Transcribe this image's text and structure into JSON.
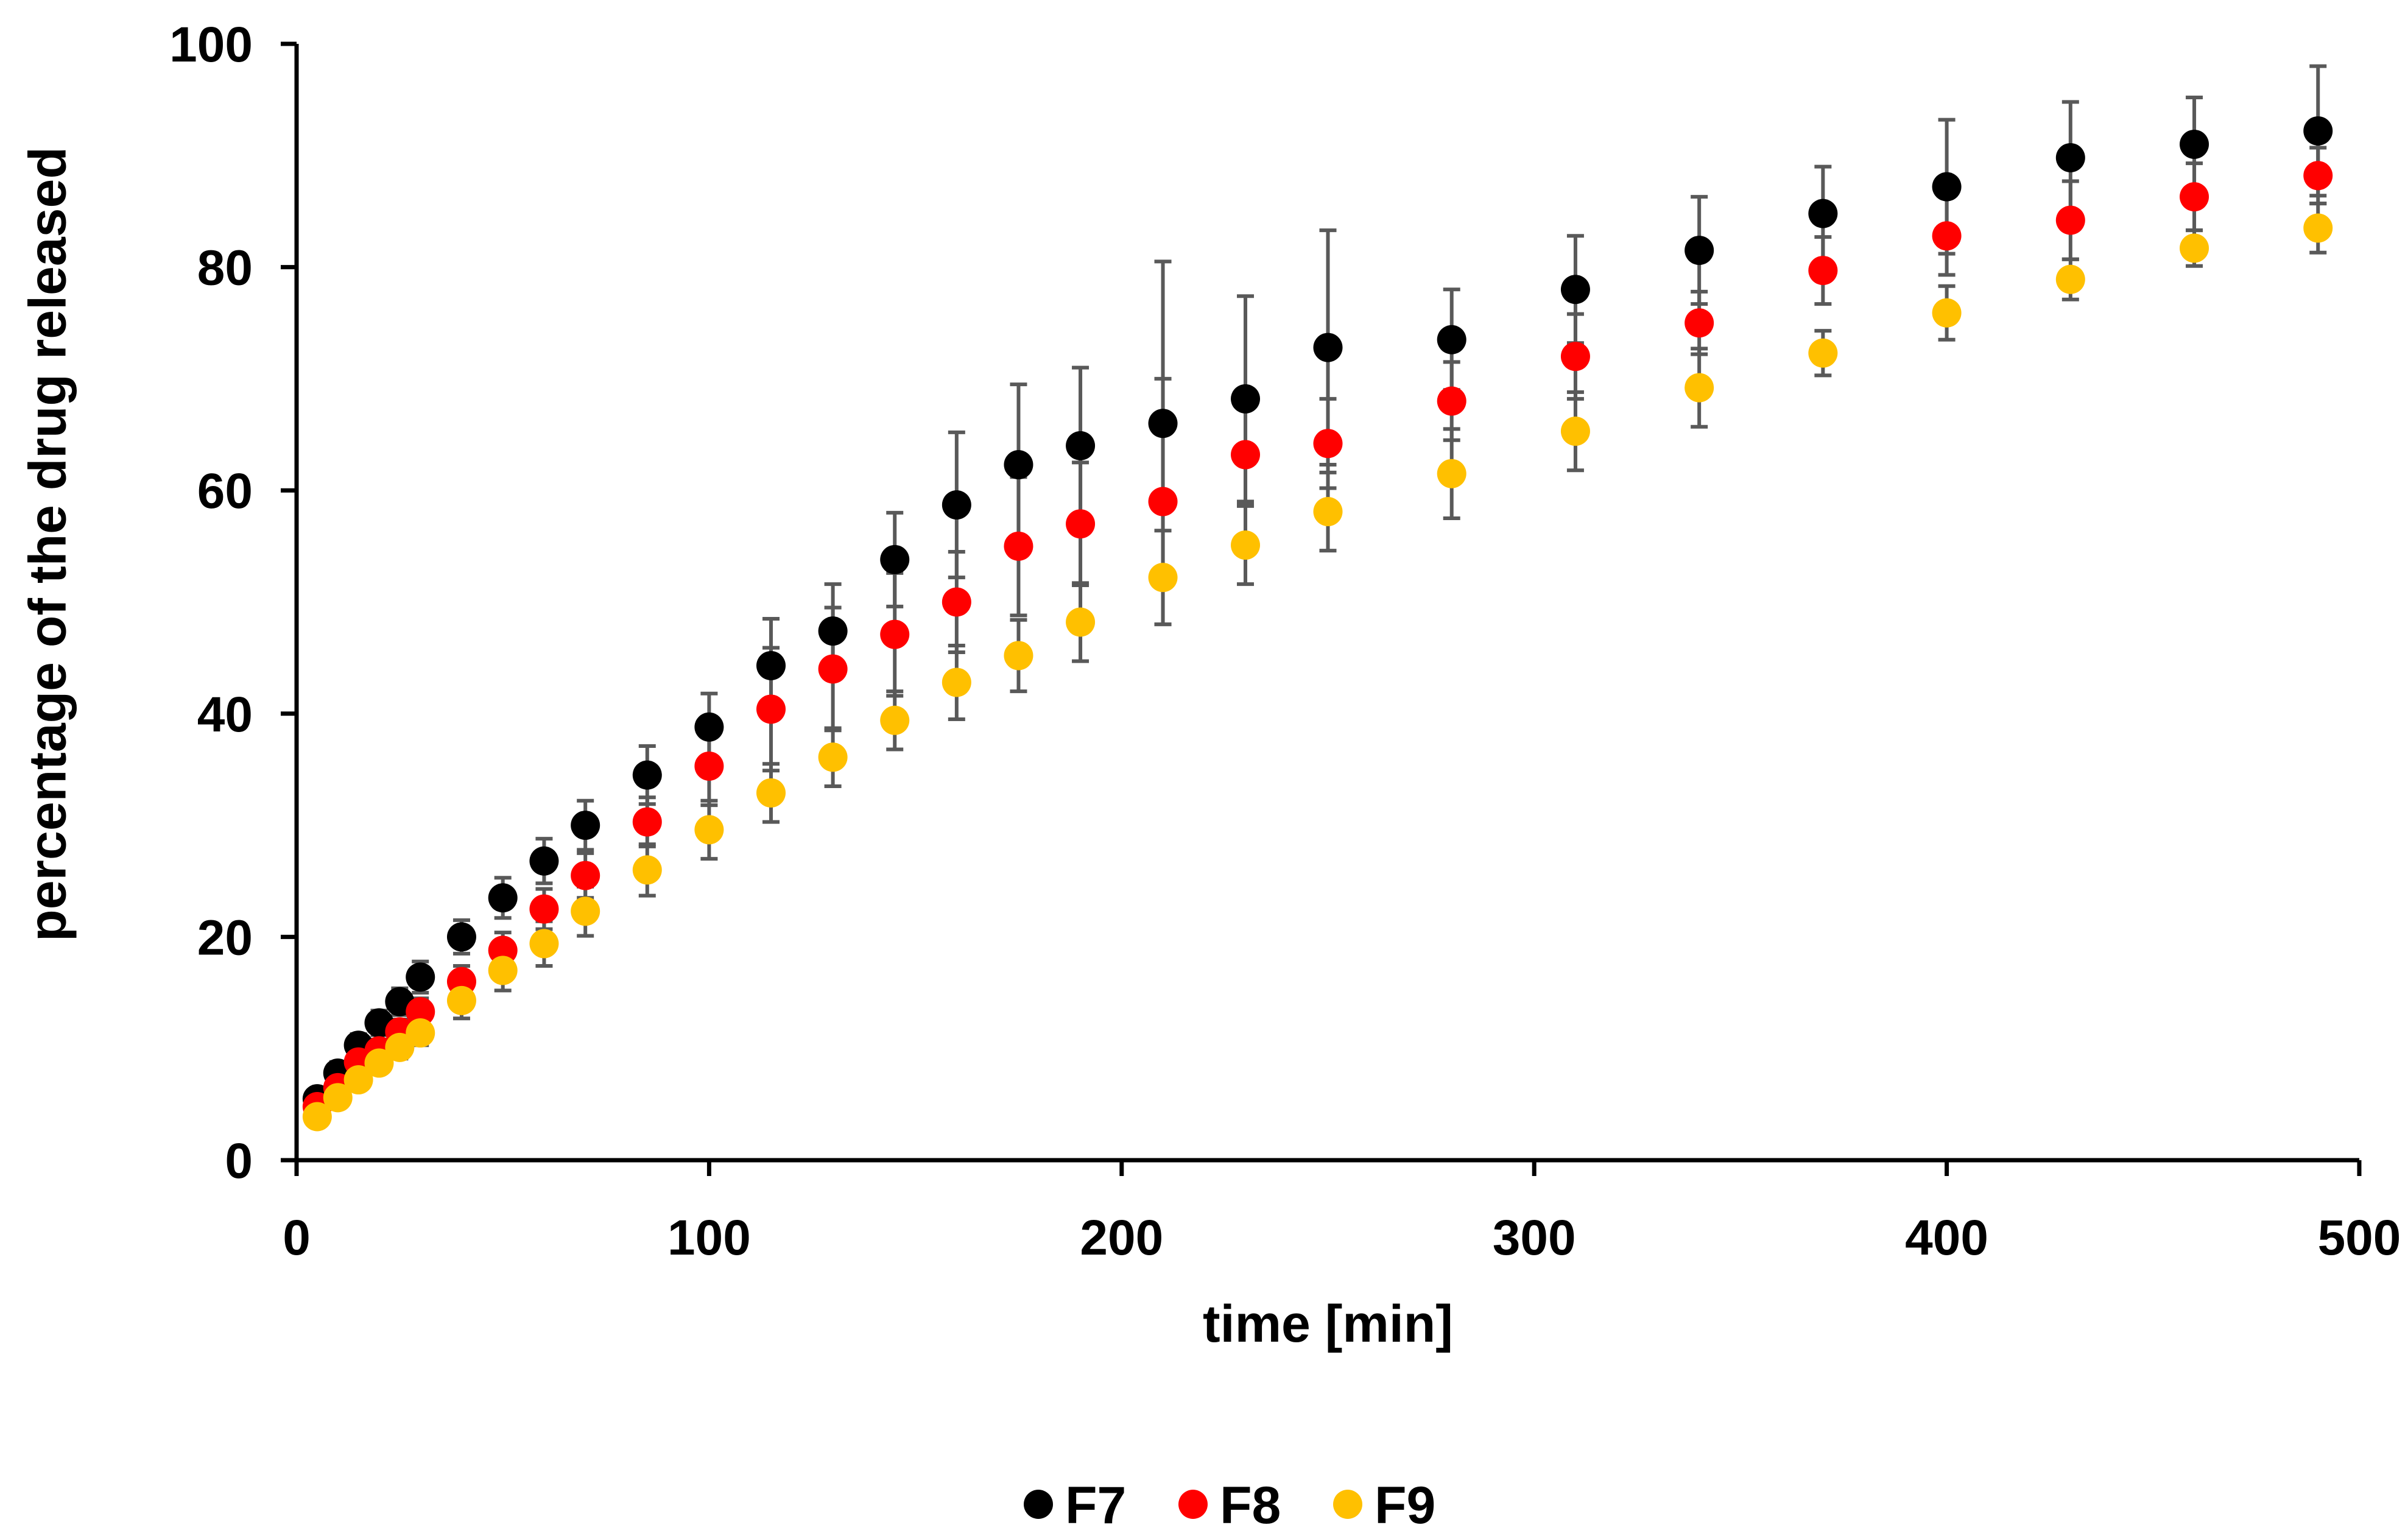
{
  "chart_data": {
    "type": "scatter",
    "title": "",
    "xlabel": "time [min]",
    "ylabel": "percentage of the drug released",
    "xlim": [
      0,
      500
    ],
    "ylim": [
      0,
      100
    ],
    "xticks": [
      0,
      100,
      200,
      300,
      400,
      500
    ],
    "yticks": [
      0,
      20,
      40,
      60,
      80,
      100
    ],
    "grid": false,
    "legend_position": "bottom-center",
    "x": [
      5,
      10,
      15,
      20,
      25,
      30,
      40,
      50,
      60,
      70,
      85,
      100,
      115,
      130,
      145,
      160,
      175,
      190,
      210,
      230,
      250,
      280,
      310,
      340,
      370,
      400,
      430,
      460,
      490
    ],
    "series": [
      {
        "name": "F7",
        "color": "#000000",
        "values": [
          5.5,
          7.8,
          10.3,
          12.3,
          14.2,
          16.4,
          20.0,
          23.5,
          26.8,
          30.0,
          34.5,
          38.8,
          44.3,
          47.4,
          53.8,
          58.7,
          62.3,
          64.0,
          66.0,
          68.2,
          72.8,
          73.5,
          78.0,
          81.5,
          84.8,
          87.2,
          89.8,
          91.0,
          92.2
        ],
        "errors": [
          0.8,
          1.0,
          1.0,
          1.1,
          1.2,
          1.4,
          1.5,
          1.8,
          2.0,
          2.2,
          2.6,
          3.0,
          4.2,
          4.2,
          4.2,
          6.5,
          7.2,
          7.0,
          14.5,
          9.2,
          10.5,
          4.5,
          4.8,
          4.8,
          4.2,
          6.0,
          5.0,
          4.2,
          5.8
        ]
      },
      {
        "name": "F8",
        "color": "#ff0000",
        "values": [
          4.8,
          6.5,
          8.8,
          9.8,
          11.5,
          13.3,
          16.0,
          18.8,
          22.5,
          25.5,
          30.3,
          35.3,
          40.4,
          44.0,
          47.1,
          50.0,
          55.0,
          57.0,
          59.0,
          63.2,
          64.2,
          68.0,
          72.0,
          75.0,
          79.7,
          82.8,
          84.2,
          86.3,
          88.2
        ],
        "errors": [
          0.8,
          0.9,
          1.0,
          1.0,
          1.1,
          1.2,
          1.4,
          1.6,
          1.8,
          2.0,
          2.2,
          3.5,
          5.5,
          5.5,
          5.5,
          4.5,
          6.2,
          5.5,
          11.0,
          4.5,
          4.0,
          3.5,
          3.8,
          2.8,
          3.0,
          3.5,
          3.5,
          3.0,
          2.5
        ]
      },
      {
        "name": "F9",
        "color": "#ffc000",
        "values": [
          3.9,
          5.6,
          7.2,
          8.7,
          10.1,
          11.4,
          14.3,
          17.0,
          19.4,
          22.3,
          26.0,
          29.6,
          32.9,
          36.1,
          39.4,
          42.8,
          45.2,
          48.2,
          52.2,
          55.1,
          58.1,
          61.5,
          65.3,
          69.2,
          72.3,
          75.9,
          78.9,
          81.7,
          83.5
        ],
        "errors": [
          0.6,
          0.7,
          0.8,
          0.9,
          1.0,
          1.1,
          1.6,
          1.8,
          2.0,
          2.2,
          2.3,
          2.6,
          2.6,
          2.6,
          2.6,
          3.3,
          3.2,
          3.5,
          4.2,
          3.5,
          3.5,
          4.0,
          3.5,
          3.5,
          2.0,
          2.4,
          1.8,
          1.6,
          2.2
        ]
      }
    ]
  }
}
